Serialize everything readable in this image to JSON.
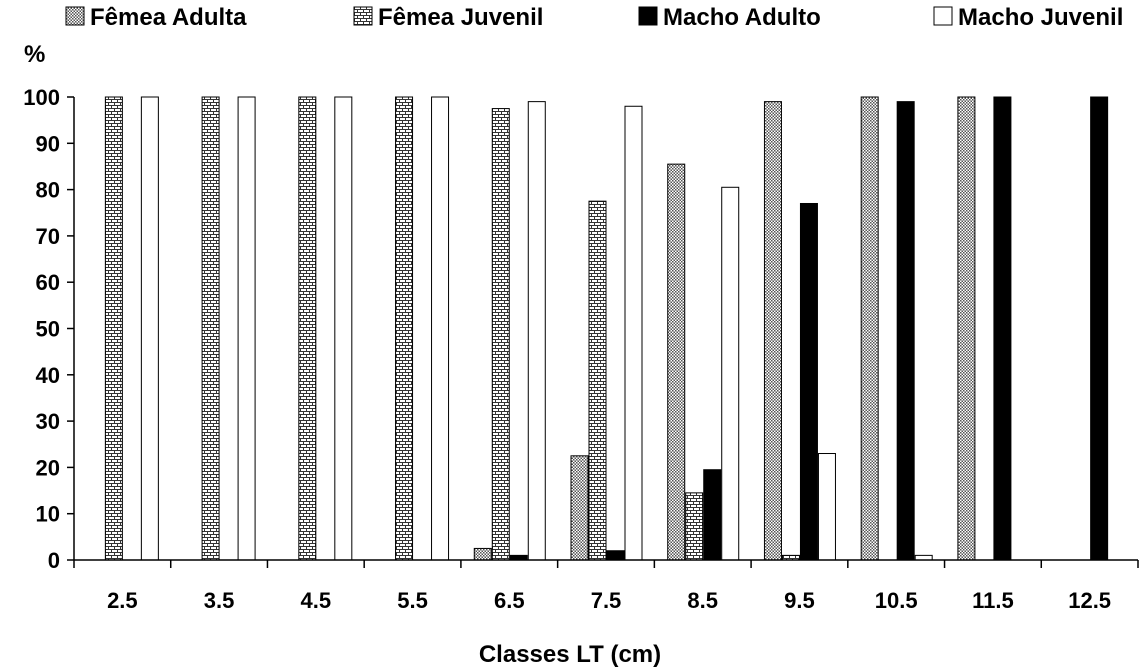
{
  "chart_data": {
    "type": "bar",
    "categories": [
      "2.5",
      "3.5",
      "4.5",
      "5.5",
      "6.5",
      "7.5",
      "8.5",
      "9.5",
      "10.5",
      "11.5",
      "12.5"
    ],
    "series": [
      {
        "name": "Fêmea Adulta",
        "pattern": "dots",
        "values": [
          0,
          0,
          0,
          0,
          2.5,
          22.5,
          85.5,
          99,
          100,
          100,
          0
        ]
      },
      {
        "name": "Fêmea Juvenil",
        "pattern": "brick",
        "values": [
          100,
          100,
          100,
          100,
          97.5,
          77.5,
          14.5,
          1,
          0,
          0,
          0
        ]
      },
      {
        "name": "Macho Adulto",
        "pattern": "solid",
        "color": "#000000",
        "values": [
          0,
          0,
          0,
          0,
          1,
          2,
          19.5,
          77,
          99,
          100,
          100
        ]
      },
      {
        "name": "Macho Juvenil",
        "pattern": "hollow",
        "color": "#ffffff",
        "values": [
          100,
          100,
          100,
          100,
          99,
          98,
          80.5,
          23,
          1,
          0,
          0
        ]
      }
    ],
    "ylabel": "%",
    "xlabel": "Classes LT (cm)",
    "ylim": [
      0,
      100
    ],
    "yticks": [
      "0",
      "10",
      "20",
      "30",
      "40",
      "50",
      "60",
      "70",
      "80",
      "90",
      "100"
    ],
    "grid": false,
    "legend_position": "top"
  }
}
